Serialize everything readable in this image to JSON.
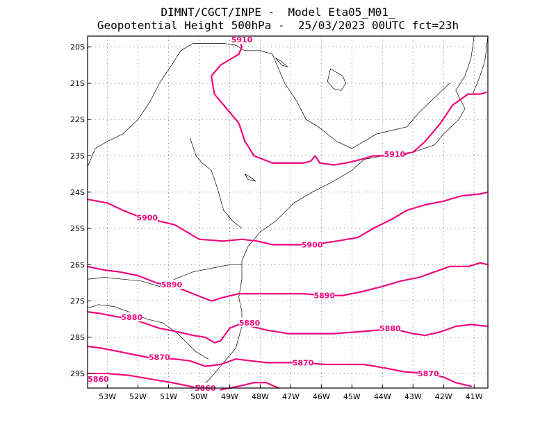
{
  "title": {
    "line1": "DIMNT/CGCT/INPE -  Model Eta05_M01_",
    "line2": "Geopotential Height 500hPa -  25/03/2023 00UTC fct=23h"
  },
  "colors": {
    "contour": "#f0087c",
    "coast": "#000000",
    "grid": "#999999"
  },
  "axes": {
    "lat_labels": [
      "20S",
      "21S",
      "22S",
      "23S",
      "24S",
      "25S",
      "26S",
      "27S",
      "28S",
      "29S"
    ],
    "lat_values": [
      -20,
      -21,
      -22,
      -23,
      -24,
      -25,
      -26,
      -27,
      -28,
      -29
    ],
    "lon_labels": [
      "53W",
      "52W",
      "51W",
      "50W",
      "49W",
      "48W",
      "47W",
      "46W",
      "45W",
      "44W",
      "43W",
      "42W",
      "41W"
    ],
    "lon_values": [
      -53,
      -52,
      -51,
      -50,
      -49,
      -48,
      -47,
      -46,
      -45,
      -44,
      -43,
      -42,
      -41
    ],
    "lon_range": [
      -53.65,
      -40.55
    ],
    "lat_range": [
      -29.4,
      -19.7
    ]
  },
  "contours": [
    {
      "value": "5910",
      "points": [
        [
          -48.7,
          -19.75
        ],
        [
          -48.6,
          -20.0
        ],
        [
          -48.7,
          -20.2
        ],
        [
          -49.3,
          -20.5
        ],
        [
          -49.6,
          -20.8
        ],
        [
          -49.5,
          -21.3
        ],
        [
          -49.1,
          -21.7
        ],
        [
          -48.7,
          -22.1
        ],
        [
          -48.5,
          -22.6
        ],
        [
          -48.2,
          -23.0
        ],
        [
          -47.6,
          -23.2
        ],
        [
          -46.9,
          -23.2
        ],
        [
          -46.6,
          -23.2
        ],
        [
          -46.35,
          -23.15
        ],
        [
          -46.2,
          -23.0
        ],
        [
          -46.05,
          -23.2
        ],
        [
          -45.6,
          -23.25
        ],
        [
          -45.2,
          -23.2
        ],
        [
          -44.7,
          -23.1
        ],
        [
          -44.3,
          -23.0
        ],
        [
          -43.7,
          -23.0
        ],
        [
          -43.0,
          -22.9
        ],
        [
          -42.6,
          -22.6
        ],
        [
          -42.1,
          -22.1
        ],
        [
          -41.7,
          -21.6
        ],
        [
          -41.2,
          -21.3
        ],
        [
          -40.8,
          -21.3
        ],
        [
          -40.6,
          -21.25
        ]
      ],
      "labels": [
        {
          "text": "5910",
          "lon": -48.6,
          "lat": -19.8
        },
        {
          "text": "5910",
          "lon": -43.6,
          "lat": -22.95
        }
      ]
    },
    {
      "value": "5900",
      "points": [
        [
          -53.65,
          -24.2
        ],
        [
          -53.0,
          -24.3
        ],
        [
          -52.5,
          -24.5
        ],
        [
          -51.9,
          -24.7
        ],
        [
          -51.3,
          -24.8
        ],
        [
          -50.8,
          -24.9
        ],
        [
          -50.4,
          -25.1
        ],
        [
          -50.0,
          -25.3
        ],
        [
          -49.2,
          -25.35
        ],
        [
          -48.6,
          -25.3
        ],
        [
          -48.1,
          -25.35
        ],
        [
          -47.6,
          -25.45
        ],
        [
          -47.0,
          -25.45
        ],
        [
          -46.3,
          -25.45
        ],
        [
          -45.5,
          -25.35
        ],
        [
          -44.8,
          -25.25
        ],
        [
          -44.3,
          -25.0
        ],
        [
          -43.7,
          -24.75
        ],
        [
          -43.2,
          -24.5
        ],
        [
          -42.6,
          -24.35
        ],
        [
          -42.0,
          -24.25
        ],
        [
          -41.4,
          -24.1
        ],
        [
          -40.8,
          -24.05
        ],
        [
          -40.55,
          -24.0
        ]
      ],
      "labels": [
        {
          "text": "5900",
          "lon": -51.7,
          "lat": -24.7
        },
        {
          "text": "5900",
          "lon": -46.3,
          "lat": -25.45
        }
      ]
    },
    {
      "value": "5890",
      "points": [
        [
          -53.65,
          -26.05
        ],
        [
          -53.1,
          -26.15
        ],
        [
          -52.6,
          -26.2
        ],
        [
          -52.0,
          -26.3
        ],
        [
          -51.4,
          -26.5
        ],
        [
          -50.8,
          -26.6
        ],
        [
          -50.2,
          -26.8
        ],
        [
          -49.6,
          -27.0
        ],
        [
          -49.2,
          -26.9
        ],
        [
          -48.7,
          -26.8
        ],
        [
          -48.0,
          -26.8
        ],
        [
          -47.3,
          -26.8
        ],
        [
          -46.6,
          -26.8
        ],
        [
          -45.9,
          -26.85
        ],
        [
          -45.3,
          -26.85
        ],
        [
          -44.7,
          -26.75
        ],
        [
          -44.0,
          -26.6
        ],
        [
          -43.4,
          -26.45
        ],
        [
          -42.8,
          -26.35
        ],
        [
          -42.3,
          -26.2
        ],
        [
          -41.8,
          -26.05
        ],
        [
          -41.2,
          -26.05
        ],
        [
          -40.8,
          -25.95
        ],
        [
          -40.55,
          -26.0
        ]
      ],
      "labels": [
        {
          "text": "5890",
          "lon": -50.9,
          "lat": -26.55
        },
        {
          "text": "5890",
          "lon": -45.9,
          "lat": -26.85
        }
      ]
    },
    {
      "value": "5880",
      "points": [
        [
          -53.65,
          -27.3
        ],
        [
          -53.2,
          -27.35
        ],
        [
          -52.6,
          -27.45
        ],
        [
          -52.0,
          -27.55
        ],
        [
          -51.3,
          -27.75
        ],
        [
          -50.7,
          -27.85
        ],
        [
          -50.2,
          -27.95
        ],
        [
          -49.8,
          -28.0
        ],
        [
          -49.5,
          -28.15
        ],
        [
          -49.3,
          -28.1
        ],
        [
          -49.0,
          -27.75
        ],
        [
          -48.7,
          -27.65
        ],
        [
          -48.3,
          -27.7
        ],
        [
          -47.8,
          -27.8
        ],
        [
          -47.1,
          -27.9
        ],
        [
          -46.4,
          -27.9
        ],
        [
          -45.6,
          -27.9
        ],
        [
          -44.8,
          -27.85
        ],
        [
          -44.1,
          -27.8
        ],
        [
          -43.5,
          -27.8
        ],
        [
          -43.0,
          -27.9
        ],
        [
          -42.6,
          -27.95
        ],
        [
          -42.1,
          -27.85
        ],
        [
          -41.6,
          -27.7
        ],
        [
          -41.1,
          -27.65
        ],
        [
          -40.55,
          -27.7
        ]
      ],
      "labels": [
        {
          "text": "5880",
          "lon": -52.2,
          "lat": -27.45
        },
        {
          "text": "5880",
          "lon": -48.35,
          "lat": -27.6
        },
        {
          "text": "5880",
          "lon": -43.75,
          "lat": -27.75
        }
      ]
    },
    {
      "value": "5870",
      "points": [
        [
          -53.65,
          -28.25
        ],
        [
          -53.2,
          -28.3
        ],
        [
          -52.6,
          -28.4
        ],
        [
          -52.0,
          -28.5
        ],
        [
          -51.4,
          -28.6
        ],
        [
          -50.8,
          -28.6
        ],
        [
          -50.3,
          -28.65
        ],
        [
          -49.8,
          -28.8
        ],
        [
          -49.3,
          -28.75
        ],
        [
          -48.8,
          -28.6
        ],
        [
          -48.3,
          -28.65
        ],
        [
          -47.8,
          -28.7
        ],
        [
          -47.2,
          -28.7
        ],
        [
          -46.6,
          -28.7
        ],
        [
          -45.9,
          -28.75
        ],
        [
          -45.3,
          -28.75
        ],
        [
          -44.6,
          -28.75
        ],
        [
          -43.9,
          -28.85
        ],
        [
          -43.3,
          -28.95
        ],
        [
          -42.5,
          -29.0
        ],
        [
          -42.0,
          -29.1
        ],
        [
          -41.6,
          -29.25
        ],
        [
          -41.1,
          -29.35
        ]
      ],
      "labels": [
        {
          "text": "5870",
          "lon": -51.3,
          "lat": -28.55
        },
        {
          "text": "5870",
          "lon": -46.6,
          "lat": -28.7
        },
        {
          "text": "5870",
          "lon": -42.5,
          "lat": -29.0
        }
      ]
    },
    {
      "value": "5860",
      "points": [
        [
          -53.65,
          -29.0
        ],
        [
          -53.0,
          -29.0
        ],
        [
          -52.3,
          -29.05
        ],
        [
          -51.6,
          -29.15
        ],
        [
          -50.9,
          -29.25
        ],
        [
          -50.3,
          -29.35
        ],
        [
          -49.9,
          -29.45
        ]
      ],
      "labels": [
        {
          "text": "5860",
          "lon": -53.3,
          "lat": -29.15
        },
        {
          "text": "5860",
          "lon": -49.8,
          "lat": -29.4
        }
      ]
    },
    {
      "value": "5860b",
      "points": [
        [
          -49.3,
          -29.45
        ],
        [
          -48.7,
          -29.35
        ],
        [
          -48.2,
          -29.25
        ],
        [
          -47.8,
          -29.25
        ],
        [
          -47.4,
          -29.4
        ]
      ],
      "labels": []
    }
  ],
  "coastlines": [
    [
      [
        -41.0,
        -19.7
      ],
      [
        -41.1,
        -20.3
      ],
      [
        -41.3,
        -20.8
      ],
      [
        -41.6,
        -21.2
      ],
      [
        -41.3,
        -21.7
      ],
      [
        -41.5,
        -22.0
      ],
      [
        -42.0,
        -22.4
      ],
      [
        -42.3,
        -22.7
      ],
      [
        -43.0,
        -22.9
      ],
      [
        -43.4,
        -23.0
      ],
      [
        -44.0,
        -23.0
      ],
      [
        -44.6,
        -23.1
      ],
      [
        -45.0,
        -23.4
      ],
      [
        -45.6,
        -23.7
      ],
      [
        -46.3,
        -24.0
      ],
      [
        -46.9,
        -24.3
      ],
      [
        -47.5,
        -24.8
      ],
      [
        -48.0,
        -25.1
      ],
      [
        -48.4,
        -25.5
      ],
      [
        -48.6,
        -25.9
      ],
      [
        -48.6,
        -26.4
      ],
      [
        -48.7,
        -26.9
      ],
      [
        -48.6,
        -27.3
      ],
      [
        -48.6,
        -27.7
      ],
      [
        -48.8,
        -28.3
      ],
      [
        -49.2,
        -28.7
      ],
      [
        -49.6,
        -29.1
      ],
      [
        -50.0,
        -29.45
      ]
    ],
    [
      [
        -40.55,
        -19.7
      ],
      [
        -40.65,
        -20.4
      ],
      [
        -40.85,
        -20.9
      ],
      [
        -41.05,
        -21.3
      ]
    ],
    [
      [
        -53.65,
        -23.3
      ],
      [
        -53.4,
        -22.8
      ],
      [
        -53.0,
        -22.6
      ],
      [
        -52.5,
        -22.4
      ],
      [
        -52.0,
        -22.0
      ],
      [
        -51.6,
        -21.5
      ],
      [
        -51.3,
        -21.0
      ],
      [
        -50.9,
        -20.5
      ],
      [
        -50.6,
        -20.1
      ],
      [
        -50.2,
        -19.9
      ],
      [
        -49.7,
        -19.9
      ],
      [
        -49.2,
        -19.9
      ],
      [
        -48.8,
        -19.95
      ],
      [
        -48.5,
        -20.1
      ],
      [
        -48.0,
        -20.1
      ],
      [
        -47.6,
        -20.2
      ],
      [
        -47.4,
        -20.6
      ],
      [
        -47.2,
        -21.0
      ],
      [
        -46.8,
        -21.5
      ],
      [
        -46.5,
        -22.0
      ],
      [
        -46.1,
        -22.2
      ],
      [
        -45.5,
        -22.6
      ],
      [
        -45.0,
        -22.8
      ],
      [
        -44.6,
        -22.6
      ],
      [
        -44.2,
        -22.4
      ],
      [
        -43.7,
        -22.3
      ],
      [
        -43.2,
        -22.2
      ],
      [
        -42.8,
        -21.8
      ],
      [
        -42.3,
        -21.4
      ],
      [
        -41.8,
        -21.0
      ]
    ],
    [
      [
        -53.65,
        -26.4
      ],
      [
        -53.1,
        -26.35
      ],
      [
        -52.5,
        -26.4
      ],
      [
        -51.9,
        -26.45
      ],
      [
        -51.3,
        -26.6
      ],
      [
        -50.8,
        -26.4
      ],
      [
        -50.2,
        -26.2
      ],
      [
        -49.6,
        -26.1
      ],
      [
        -49.0,
        -26.0
      ],
      [
        -48.6,
        -26.0
      ]
    ],
    [
      [
        -50.3,
        -22.5
      ],
      [
        -50.1,
        -23.0
      ],
      [
        -49.9,
        -23.2
      ],
      [
        -49.6,
        -23.4
      ],
      [
        -49.4,
        -23.9
      ],
      [
        -49.2,
        -24.5
      ],
      [
        -48.9,
        -24.8
      ],
      [
        -48.6,
        -25.0
      ]
    ],
    [
      [
        -53.65,
        -27.2
      ],
      [
        -53.3,
        -27.1
      ],
      [
        -52.8,
        -27.15
      ],
      [
        -52.3,
        -27.3
      ],
      [
        -51.7,
        -27.5
      ],
      [
        -51.2,
        -27.6
      ],
      [
        -50.7,
        -27.9
      ],
      [
        -50.1,
        -28.4
      ],
      [
        -49.7,
        -28.6
      ]
    ]
  ],
  "lakes": [
    [
      [
        -45.7,
        -20.6
      ],
      [
        -45.5,
        -20.7
      ],
      [
        -45.3,
        -20.8
      ],
      [
        -45.2,
        -21.0
      ],
      [
        -45.35,
        -21.2
      ],
      [
        -45.6,
        -21.15
      ],
      [
        -45.8,
        -20.95
      ],
      [
        -45.7,
        -20.6
      ]
    ],
    [
      [
        -47.5,
        -20.3
      ],
      [
        -47.3,
        -20.4
      ],
      [
        -47.1,
        -20.55
      ],
      [
        -47.3,
        -20.5
      ],
      [
        -47.5,
        -20.3
      ]
    ],
    [
      [
        -48.5,
        -23.5
      ],
      [
        -48.3,
        -23.6
      ],
      [
        -48.15,
        -23.7
      ],
      [
        -48.4,
        -23.65
      ],
      [
        -48.5,
        -23.5
      ]
    ]
  ]
}
